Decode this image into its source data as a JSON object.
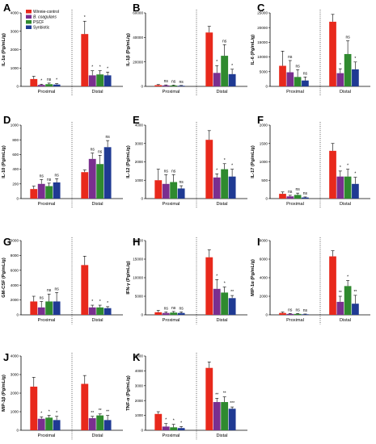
{
  "legend": {
    "entries": [
      {
        "label": "Winnie-control",
        "color": "#e8291c"
      },
      {
        "label": "B. coagulans",
        "color": "#7a2f8f"
      },
      {
        "label": "PSCF",
        "color": "#2f8a2f"
      },
      {
        "label": "Synbiotic",
        "color": "#1f3a93"
      }
    ]
  },
  "colors": [
    "#e8291c",
    "#7a2f8f",
    "#2f8a2f",
    "#1f3a93"
  ],
  "chart_data": [
    {
      "panel": "A",
      "type": "bar",
      "ylabel": "IL-1α (Pg/mL/g)",
      "ylim": [
        0,
        4000
      ],
      "yticks": [
        "0",
        "1000",
        "2000",
        "3000",
        "4000"
      ],
      "categories": [
        "Proximal",
        "Distal"
      ],
      "series": [
        {
          "name": "Winnie-control",
          "values": [
            400,
            2850
          ],
          "errors": [
            150,
            700
          ]
        },
        {
          "name": "B. coagulans",
          "values": [
            80,
            600
          ],
          "errors": [
            40,
            250
          ]
        },
        {
          "name": "PSCF",
          "values": [
            120,
            650
          ],
          "errors": [
            60,
            200
          ]
        },
        {
          "name": "Synbiotic",
          "values": [
            100,
            600
          ],
          "errors": [
            50,
            180
          ]
        }
      ],
      "annotations": [
        [
          "",
          "*"
        ],
        [
          "*",
          "*"
        ],
        [
          "ns",
          "*"
        ],
        [
          "*",
          "*"
        ]
      ]
    },
    {
      "panel": "B",
      "type": "bar",
      "ylabel": "IL-1β (Pg/mL/g)",
      "ylim": [
        0,
        60000
      ],
      "yticks": [
        "0",
        "20000",
        "40000",
        "60000"
      ],
      "categories": [
        "Proximal",
        "Distal"
      ],
      "series": [
        {
          "name": "Winnie-control",
          "values": [
            1000,
            44000
          ],
          "errors": [
            500,
            5000
          ]
        },
        {
          "name": "B. coagulans",
          "values": [
            800,
            11000
          ],
          "errors": [
            400,
            6000
          ]
        },
        {
          "name": "PSCF",
          "values": [
            700,
            25000
          ],
          "errors": [
            400,
            9000
          ]
        },
        {
          "name": "Synbiotic",
          "values": [
            500,
            10000
          ],
          "errors": [
            300,
            4000
          ]
        }
      ],
      "annotations": [
        [
          "",
          ""
        ],
        [
          "ns",
          "*"
        ],
        [
          "ns",
          "ns"
        ],
        [
          "ns",
          "*"
        ]
      ]
    },
    {
      "panel": "C",
      "type": "bar",
      "ylabel": "IL-6 (Pg/mL/g)",
      "ylim": [
        0,
        25000
      ],
      "yticks": [
        "0",
        "5000",
        "10000",
        "15000",
        "20000",
        "25000"
      ],
      "categories": [
        "Proximal",
        "Distal"
      ],
      "series": [
        {
          "name": "Winnie-control",
          "values": [
            7000,
            22000
          ],
          "errors": [
            5000,
            2500
          ]
        },
        {
          "name": "B. coagulans",
          "values": [
            4800,
            4500
          ],
          "errors": [
            4000,
            1500
          ]
        },
        {
          "name": "PSCF",
          "values": [
            3200,
            11000
          ],
          "errors": [
            2500,
            4500
          ]
        },
        {
          "name": "Synbiotic",
          "values": [
            2000,
            5800
          ],
          "errors": [
            1200,
            2500
          ]
        }
      ],
      "annotations": [
        [
          "",
          ""
        ],
        [
          "ns",
          "*"
        ],
        [
          "ns",
          "ns"
        ],
        [
          "ns",
          "*"
        ]
      ]
    },
    {
      "panel": "D",
      "type": "bar",
      "ylabel": "IL-10 (Pg/mL/g)",
      "ylim": [
        0,
        1000
      ],
      "yticks": [
        "0",
        "200",
        "400",
        "600",
        "800",
        "1000"
      ],
      "categories": [
        "Proximal",
        "Distal"
      ],
      "series": [
        {
          "name": "Winnie-control",
          "values": [
            130,
            360
          ],
          "errors": [
            40,
            30
          ]
        },
        {
          "name": "B. coagulans",
          "values": [
            200,
            540
          ],
          "errors": [
            60,
            80
          ]
        },
        {
          "name": "PSCF",
          "values": [
            170,
            470
          ],
          "errors": [
            40,
            120
          ]
        },
        {
          "name": "Synbiotic",
          "values": [
            220,
            700
          ],
          "errors": [
            50,
            90
          ]
        }
      ],
      "annotations": [
        [
          "",
          ""
        ],
        [
          "ns",
          "ns"
        ],
        [
          "ns",
          "ns"
        ],
        [
          "ns",
          "ns"
        ]
      ]
    },
    {
      "panel": "E",
      "type": "bar",
      "ylabel": "IL-12 (Pg/mL/g)",
      "ylim": [
        0,
        4000
      ],
      "yticks": [
        "0",
        "1000",
        "2000",
        "3000",
        "4000"
      ],
      "categories": [
        "Proximal",
        "Distal"
      ],
      "series": [
        {
          "name": "Winnie-control",
          "values": [
            1000,
            3200
          ],
          "errors": [
            600,
            500
          ]
        },
        {
          "name": "B. coagulans",
          "values": [
            800,
            1150
          ],
          "errors": [
            500,
            200
          ]
        },
        {
          "name": "PSCF",
          "values": [
            900,
            1600
          ],
          "errors": [
            400,
            300
          ]
        },
        {
          "name": "Synbiotic",
          "values": [
            550,
            1200
          ],
          "errors": [
            150,
            400
          ]
        }
      ],
      "annotations": [
        [
          "",
          ""
        ],
        [
          "ns",
          "*"
        ],
        [
          "ns",
          "*"
        ],
        [
          "ns",
          "*"
        ]
      ]
    },
    {
      "panel": "F",
      "type": "bar",
      "ylabel": "IL-17 (Pg/mL/g)",
      "ylim": [
        0,
        2000
      ],
      "yticks": [
        "0",
        "500",
        "1000",
        "1500",
        "2000"
      ],
      "categories": [
        "Proximal",
        "Distal"
      ],
      "series": [
        {
          "name": "Winnie-control",
          "values": [
            130,
            1300
          ],
          "errors": [
            50,
            200
          ]
        },
        {
          "name": "B. coagulans",
          "values": [
            60,
            600
          ],
          "errors": [
            30,
            150
          ]
        },
        {
          "name": "PSCF",
          "values": [
            100,
            600
          ],
          "errors": [
            50,
            200
          ]
        },
        {
          "name": "Synbiotic",
          "values": [
            30,
            400
          ],
          "errors": [
            15,
            180
          ]
        }
      ],
      "annotations": [
        [
          "",
          ""
        ],
        [
          "ns",
          "*"
        ],
        [
          "ns",
          "*"
        ],
        [
          "ns",
          "*"
        ]
      ]
    },
    {
      "panel": "G",
      "type": "bar",
      "ylabel": "GM-CSF (Pg/mL/g)",
      "ylim": [
        0,
        10000
      ],
      "yticks": [
        "0",
        "2000",
        "4000",
        "6000",
        "8000",
        "10000"
      ],
      "categories": [
        "Proximal",
        "Distal"
      ],
      "series": [
        {
          "name": "Winnie-control",
          "values": [
            1800,
            6700
          ],
          "errors": [
            700,
            1200
          ]
        },
        {
          "name": "B. coagulans",
          "values": [
            1000,
            1000
          ],
          "errors": [
            800,
            300
          ]
        },
        {
          "name": "PSCF",
          "values": [
            1800,
            1000
          ],
          "errors": [
            1000,
            300
          ]
        },
        {
          "name": "Synbiotic",
          "values": [
            1800,
            900
          ],
          "errors": [
            1200,
            200
          ]
        }
      ],
      "annotations": [
        [
          "",
          ""
        ],
        [
          "ns",
          "*"
        ],
        [
          "ns",
          "*"
        ],
        [
          "ns",
          "*"
        ]
      ]
    },
    {
      "panel": "H",
      "type": "bar",
      "ylabel": "IFN-γ (Pg/mL/g)",
      "ylim": [
        0,
        20000
      ],
      "yticks": [
        "0",
        "5000",
        "10000",
        "15000",
        "20000"
      ],
      "categories": [
        "Proximal",
        "Distal"
      ],
      "series": [
        {
          "name": "Winnie-control",
          "values": [
            700,
            15500
          ],
          "errors": [
            500,
            2000
          ]
        },
        {
          "name": "B. coagulans",
          "values": [
            500,
            7000
          ],
          "errors": [
            300,
            2500
          ]
        },
        {
          "name": "PSCF",
          "values": [
            600,
            6000
          ],
          "errors": [
            300,
            1500
          ]
        },
        {
          "name": "Synbiotic",
          "values": [
            500,
            4500
          ],
          "errors": [
            300,
            700
          ]
        }
      ],
      "annotations": [
        [
          "",
          ""
        ],
        [
          "ns",
          "*"
        ],
        [
          "ns",
          "*"
        ],
        [
          "ns",
          "**"
        ]
      ]
    },
    {
      "panel": "I",
      "type": "bar",
      "ylabel": "MIP-1α (Pg/mL/g)",
      "ylim": [
        0,
        8000
      ],
      "yticks": [
        "0",
        "2000",
        "4000",
        "6000",
        "8000"
      ],
      "categories": [
        "Proximal",
        "Distal"
      ],
      "series": [
        {
          "name": "Winnie-control",
          "values": [
            200,
            6300
          ],
          "errors": [
            100,
            600
          ]
        },
        {
          "name": "B. coagulans",
          "values": [
            100,
            1400
          ],
          "errors": [
            50,
            600
          ]
        },
        {
          "name": "PSCF",
          "values": [
            100,
            3100
          ],
          "errors": [
            50,
            600
          ]
        },
        {
          "name": "Synbiotic",
          "values": [
            60,
            1200
          ],
          "errors": [
            30,
            900
          ]
        }
      ],
      "annotations": [
        [
          "",
          ""
        ],
        [
          "ns",
          "**"
        ],
        [
          "ns",
          "*"
        ],
        [
          "ns",
          "**"
        ]
      ]
    },
    {
      "panel": "J",
      "type": "bar",
      "ylabel": "MIP-1β (Pg/mL/g)",
      "ylim": [
        0,
        4000
      ],
      "yticks": [
        "0",
        "1000",
        "2000",
        "3000",
        "4000"
      ],
      "categories": [
        "Proximal",
        "Distal"
      ],
      "series": [
        {
          "name": "Winnie-control",
          "values": [
            2350,
            2500
          ],
          "errors": [
            500,
            450
          ]
        },
        {
          "name": "B. coagulans",
          "values": [
            620,
            650
          ],
          "errors": [
            100,
            100
          ]
        },
        {
          "name": "PSCF",
          "values": [
            680,
            800
          ],
          "errors": [
            120,
            80
          ]
        },
        {
          "name": "Synbiotic",
          "values": [
            550,
            550
          ],
          "errors": [
            200,
            250
          ]
        }
      ],
      "annotations": [
        [
          "",
          ""
        ],
        [
          "*",
          "**"
        ],
        [
          "*",
          "**"
        ],
        [
          "*",
          "**"
        ]
      ]
    },
    {
      "panel": "K",
      "type": "bar",
      "ylabel": "TNF-α (Pg/mL/g)",
      "ylim": [
        0,
        5000
      ],
      "yticks": [
        "0",
        "1000",
        "2000",
        "3000",
        "4000",
        "5000"
      ],
      "categories": [
        "Proximal",
        "Distal"
      ],
      "series": [
        {
          "name": "Winnie-control",
          "values": [
            1100,
            4200
          ],
          "errors": [
            150,
            400
          ]
        },
        {
          "name": "B. coagulans",
          "values": [
            250,
            1900
          ],
          "errors": [
            200,
            250
          ]
        },
        {
          "name": "PSCF",
          "values": [
            200,
            1900
          ],
          "errors": [
            200,
            350
          ]
        },
        {
          "name": "Synbiotic",
          "values": [
            150,
            1450
          ],
          "errors": [
            100,
            120
          ]
        }
      ],
      "annotations": [
        [
          "",
          ""
        ],
        [
          "*",
          "**"
        ],
        [
          "*",
          "**"
        ],
        [
          "*",
          "***"
        ]
      ]
    }
  ]
}
